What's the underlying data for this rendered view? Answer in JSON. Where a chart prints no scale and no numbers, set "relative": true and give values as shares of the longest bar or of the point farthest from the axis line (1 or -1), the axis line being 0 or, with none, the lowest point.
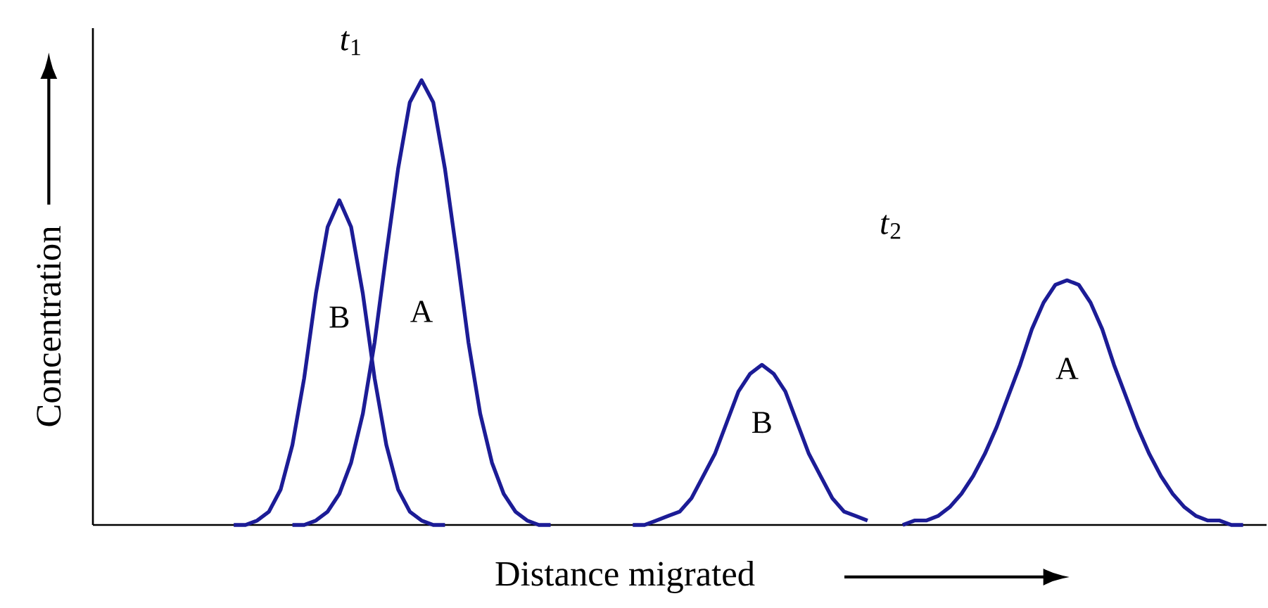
{
  "chart_data": {
    "type": "line",
    "relative": true,
    "xlabel": "Distance migrated",
    "ylabel": "Concentration",
    "annotations": [
      "*t*$_{1}$",
      "*t*$_{2}$"
    ],
    "categories": [
      null,
      null,
      null,
      null,
      null,
      null,
      null,
      null,
      null,
      null,
      null,
      null,
      null,
      null,
      null,
      null,
      null,
      null,
      null,
      null,
      null,
      null,
      null,
      null,
      null,
      null,
      null,
      null,
      null,
      null,
      null,
      null,
      null,
      null,
      null,
      null,
      null,
      null,
      null,
      null,
      null,
      null,
      null,
      null,
      null,
      null,
      null,
      null,
      null,
      null,
      null,
      null,
      null,
      null,
      null,
      null,
      null,
      null,
      null,
      null,
      null,
      null,
      null,
      null,
      null,
      null,
      null,
      null,
      null,
      null,
      null,
      null,
      null,
      null,
      null,
      null,
      null,
      null,
      null,
      null,
      null,
      null,
      null,
      null,
      null,
      null,
      null,
      null,
      null,
      null,
      null,
      null,
      null,
      null,
      null,
      null,
      null,
      null,
      null,
      null,
      null
    ],
    "series": [
      {
        "name": "B",
        "color": "#1c1c96",
        "values": [
          null,
          null,
          null,
          null,
          null,
          null,
          null,
          null,
          null,
          null,
          null,
          null,
          0.0,
          0.0,
          0.01,
          0.03,
          0.08,
          0.18,
          0.33,
          0.52,
          0.67,
          0.73,
          0.67,
          0.52,
          0.33,
          0.18,
          0.08,
          0.03,
          0.01,
          0.0,
          0.0,
          null,
          null,
          null,
          null,
          null,
          null,
          null,
          null,
          null,
          null,
          null,
          null,
          null,
          null,
          null,
          null,
          null,
          null,
          null,
          null,
          null,
          null,
          null,
          null,
          null,
          null,
          null,
          null,
          null,
          null,
          null,
          null,
          null,
          null,
          null,
          null,
          null,
          null,
          null,
          null,
          null,
          null,
          null,
          null,
          null,
          null,
          null,
          null,
          null,
          null,
          null,
          null,
          null,
          null,
          null,
          null,
          null,
          null,
          null,
          null,
          null,
          null,
          null,
          null,
          null,
          null,
          null,
          null,
          null,
          null
        ]
      },
      {
        "name": "A",
        "color": "#1c1c96",
        "values": [
          null,
          null,
          null,
          null,
          null,
          null,
          null,
          null,
          null,
          null,
          null,
          null,
          null,
          null,
          null,
          null,
          null,
          0.0,
          0.0,
          0.01,
          0.03,
          0.07,
          0.14,
          0.25,
          0.41,
          0.61,
          0.8,
          0.95,
          1,
          0.95,
          0.8,
          0.61,
          0.41,
          0.25,
          0.14,
          0.07,
          0.03,
          0.01,
          0.0,
          0.0,
          null,
          null,
          null,
          null,
          null,
          null,
          null,
          null,
          null,
          null,
          null,
          null,
          null,
          null,
          null,
          null,
          null,
          null,
          null,
          null,
          null,
          null,
          null,
          null,
          null,
          null,
          null,
          null,
          null,
          null,
          null,
          null,
          null,
          null,
          null,
          null,
          null,
          null,
          null,
          null,
          null,
          null,
          null,
          null,
          null,
          null,
          null,
          null,
          null,
          null,
          null,
          null,
          null,
          null,
          null,
          null,
          null,
          null,
          null,
          null,
          null
        ]
      },
      {
        "name": "B",
        "color": "#1c1c96",
        "values": [
          null,
          null,
          null,
          null,
          null,
          null,
          null,
          null,
          null,
          null,
          null,
          null,
          null,
          null,
          null,
          null,
          null,
          null,
          null,
          null,
          null,
          null,
          null,
          null,
          null,
          null,
          null,
          null,
          null,
          null,
          null,
          null,
          null,
          null,
          null,
          null,
          null,
          null,
          null,
          null,
          null,
          null,
          null,
          null,
          null,
          null,
          0.0,
          0.0,
          0.01,
          0.02,
          0.03,
          0.06,
          0.11,
          0.16,
          0.23,
          0.3,
          0.34,
          0.36,
          0.34,
          0.3,
          0.23,
          0.16,
          0.11,
          0.06,
          0.03,
          0.02,
          0.01,
          null,
          null,
          null,
          null,
          null,
          null,
          null,
          null,
          null,
          null,
          null,
          null,
          null,
          null,
          null,
          null,
          null,
          null,
          null,
          null,
          null,
          null,
          null,
          null,
          null,
          null,
          null,
          null,
          null,
          null,
          null,
          null,
          null,
          null
        ]
      },
      {
        "name": "A",
        "color": "#1c1c96",
        "values": [
          null,
          null,
          null,
          null,
          null,
          null,
          null,
          null,
          null,
          null,
          null,
          null,
          null,
          null,
          null,
          null,
          null,
          null,
          null,
          null,
          null,
          null,
          null,
          null,
          null,
          null,
          null,
          null,
          null,
          null,
          null,
          null,
          null,
          null,
          null,
          null,
          null,
          null,
          null,
          null,
          null,
          null,
          null,
          null,
          null,
          null,
          null,
          null,
          null,
          null,
          null,
          null,
          null,
          null,
          null,
          null,
          null,
          null,
          null,
          null,
          null,
          null,
          null,
          null,
          null,
          null,
          null,
          null,
          null,
          0.0,
          0.01,
          0.01,
          0.02,
          0.04,
          0.07,
          0.11,
          0.16,
          0.22,
          0.29,
          0.36,
          0.44,
          0.5,
          0.54,
          0.55,
          0.54,
          0.5,
          0.44,
          0.36,
          0.29,
          0.22,
          0.16,
          0.11,
          0.07,
          0.04,
          0.02,
          0.01,
          0.01,
          0.0,
          0.0,
          null,
          null
        ]
      }
    ]
  }
}
